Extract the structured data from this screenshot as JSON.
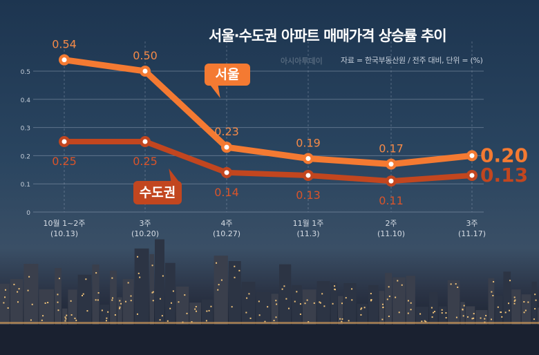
{
  "title": "서울·수도권 아파트 매매가격 상승률 추이",
  "logo_text": "아시아투데이",
  "source": "자료 = 한국부동산원 / 전주 대비, 단위 = (%)",
  "chart_data": {
    "type": "line",
    "title": "서울·수도권 아파트 매매가격 상승률 추이",
    "xlabel": "",
    "ylabel": "",
    "ylim": [
      0,
      0.5
    ],
    "yticks": [
      "0",
      "0.1",
      "0.2",
      "0.3",
      "0.4",
      "0.5"
    ],
    "grid": true,
    "categories": [
      [
        "10월 1~2주",
        "(10.13)"
      ],
      [
        "3주",
        "(10.20)"
      ],
      [
        "4주",
        "(10.27)"
      ],
      [
        "11월 1주",
        "(11.3)"
      ],
      [
        "2주",
        "(11.10)"
      ],
      [
        "3주",
        "(11.17)"
      ]
    ],
    "series": [
      {
        "name": "서울",
        "color": "#f47a32",
        "label_color": "#f58a48",
        "values": [
          0.54,
          0.5,
          0.23,
          0.19,
          0.17,
          0.2
        ]
      },
      {
        "name": "수도권",
        "color": "#c2461f",
        "label_color": "#d9542a",
        "values": [
          0.25,
          0.25,
          0.14,
          0.13,
          0.11,
          0.13
        ]
      }
    ]
  }
}
